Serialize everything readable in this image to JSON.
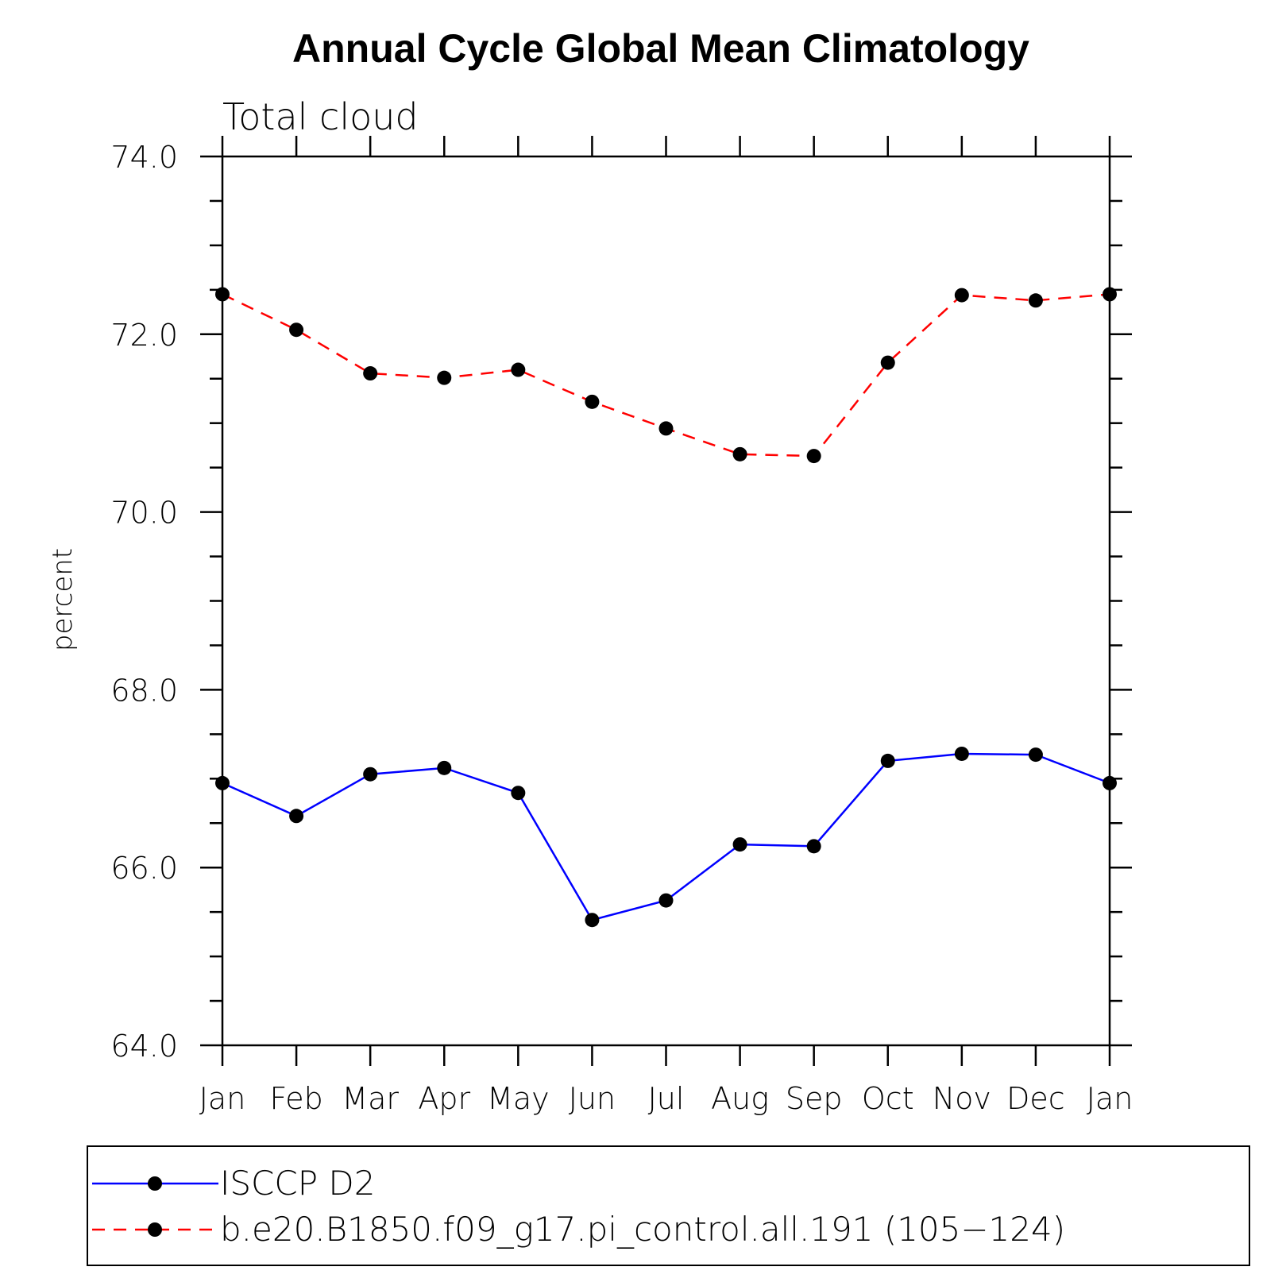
{
  "chart_data": {
    "type": "line",
    "title": "Annual Cycle Global Mean Climatology",
    "subtitle": "Total cloud",
    "ylabel": "percent",
    "xlabel": "",
    "categories": [
      "Jan",
      "Feb",
      "Mar",
      "Apr",
      "May",
      "Jun",
      "Jul",
      "Aug",
      "Sep",
      "Oct",
      "Nov",
      "Dec",
      "Jan"
    ],
    "ylim": [
      64.0,
      74.0
    ],
    "yticks": [
      64.0,
      66.0,
      68.0,
      70.0,
      72.0,
      74.0
    ],
    "ytick_labels": [
      "64.0",
      "66.0",
      "68.0",
      "70.0",
      "72.0",
      "74.0"
    ],
    "y_minor_step": 0.5,
    "series": [
      {
        "name": "ISCCP D2",
        "color": "#0000ff",
        "dash": "solid",
        "marker": "filled-circle",
        "values": [
          66.95,
          66.58,
          67.05,
          67.12,
          66.84,
          65.41,
          65.63,
          66.26,
          66.24,
          67.2,
          67.28,
          67.27,
          66.95
        ]
      },
      {
        "name": "b.e20.B1850.f09_g17.pi_control.all.191 (105−124)",
        "color": "#ff0000",
        "dash": "dashed",
        "marker": "filled-circle",
        "values": [
          72.45,
          72.05,
          71.56,
          71.51,
          71.6,
          71.24,
          70.94,
          70.65,
          70.63,
          71.68,
          72.44,
          72.38,
          72.45
        ]
      }
    ],
    "legend_position": "bottom"
  }
}
